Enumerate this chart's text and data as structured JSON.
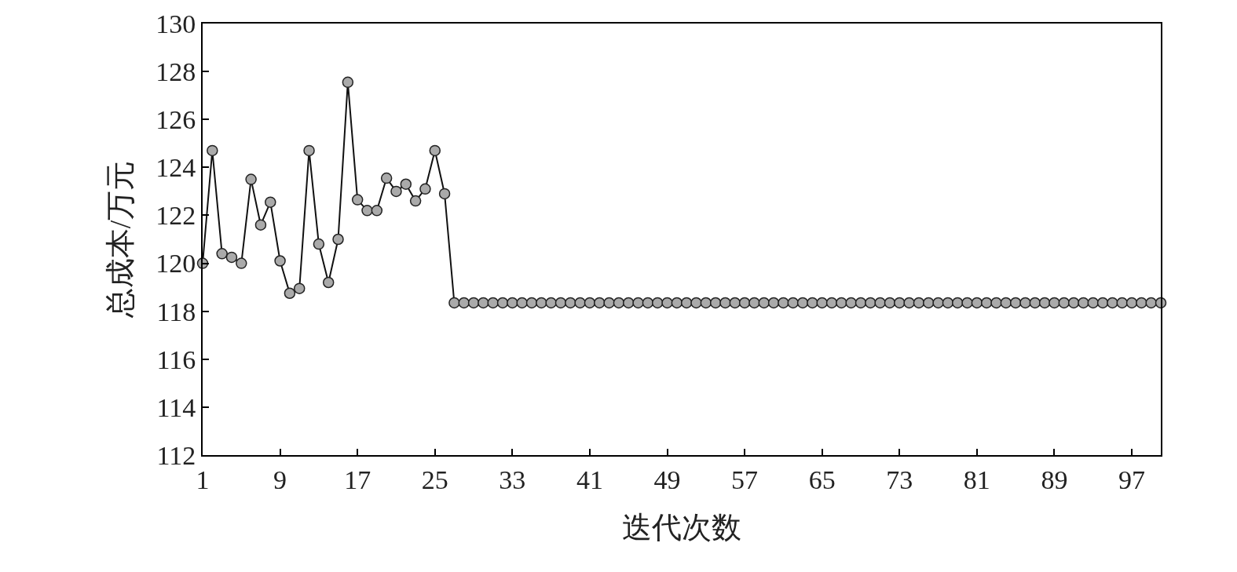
{
  "chart_data": {
    "type": "line",
    "xlabel": "迭代次数",
    "ylabel": "总成本/万元",
    "x": [
      1,
      2,
      3,
      4,
      5,
      6,
      7,
      8,
      9,
      10,
      11,
      12,
      13,
      14,
      15,
      16,
      17,
      18,
      19,
      20,
      21,
      22,
      23,
      24,
      25,
      26,
      27,
      28,
      29,
      30,
      31,
      32,
      33,
      34,
      35,
      36,
      37,
      38,
      39,
      40,
      41,
      42,
      43,
      44,
      45,
      46,
      47,
      48,
      49,
      50,
      51,
      52,
      53,
      54,
      55,
      56,
      57,
      58,
      59,
      60,
      61,
      62,
      63,
      64,
      65,
      66,
      67,
      68,
      69,
      70,
      71,
      72,
      73,
      74,
      75,
      76,
      77,
      78,
      79,
      80,
      81,
      82,
      83,
      84,
      85,
      86,
      87,
      88,
      89,
      90,
      91,
      92,
      93,
      94,
      95,
      96,
      97,
      98,
      99,
      100
    ],
    "series": [
      {
        "color": "#aaaaaa",
        "values": [
          120.0,
          124.7,
          120.4,
          120.25,
          120.0,
          123.5,
          121.6,
          122.55,
          120.1,
          118.75,
          118.95,
          124.7,
          120.8,
          119.2,
          121.0,
          127.55,
          122.65,
          122.2,
          122.2,
          123.55,
          123.0,
          123.3,
          122.6,
          123.1,
          124.7,
          122.9,
          118.35,
          118.35,
          118.35,
          118.35,
          118.35,
          118.35,
          118.35,
          118.35,
          118.35,
          118.35,
          118.35,
          118.35,
          118.35,
          118.35,
          118.35,
          118.35,
          118.35,
          118.35,
          118.35,
          118.35,
          118.35,
          118.35,
          118.35,
          118.35,
          118.35,
          118.35,
          118.35,
          118.35,
          118.35,
          118.35,
          118.35,
          118.35,
          118.35,
          118.35,
          118.35,
          118.35,
          118.35,
          118.35,
          118.35,
          118.35,
          118.35,
          118.35,
          118.35,
          118.35,
          118.35,
          118.35,
          118.35,
          118.35,
          118.35,
          118.35,
          118.35,
          118.35,
          118.35,
          118.35,
          118.35,
          118.35,
          118.35,
          118.35,
          118.35,
          118.35,
          118.35,
          118.35,
          118.35,
          118.35,
          118.35,
          118.35,
          118.35,
          118.35,
          118.35,
          118.35,
          118.35,
          118.35,
          118.35,
          118.35
        ]
      }
    ],
    "xlim": [
      1,
      100
    ],
    "xticks": [
      1,
      9,
      17,
      25,
      33,
      41,
      49,
      57,
      65,
      73,
      81,
      89,
      97
    ],
    "ylim": [
      112,
      130
    ],
    "yticks": [
      112,
      114,
      116,
      118,
      120,
      122,
      124,
      126,
      128,
      130
    ],
    "marker": "circle",
    "line_style": "solid"
  }
}
